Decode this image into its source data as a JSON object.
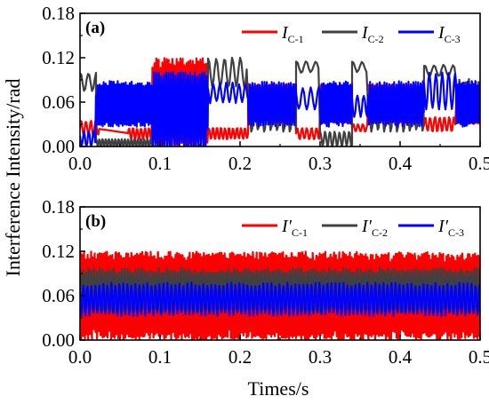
{
  "figure": {
    "ylabel": "Interference Intensity/rad",
    "xlabel": "Times/s"
  },
  "chart_data": [
    {
      "type": "line",
      "panel_label": "(a)",
      "xlim": [
        0.0,
        0.5
      ],
      "ylim": [
        0.0,
        0.18
      ],
      "xticks": [
        "0.0",
        "0.1",
        "0.2",
        "0.3",
        "0.4",
        "0.5"
      ],
      "yticks": [
        "0.00",
        "0.06",
        "0.12",
        "0.18"
      ],
      "legend_position": "top-right",
      "series": [
        {
          "name": "I",
          "subscript": "C-1",
          "color": "#ff0000",
          "segments": [
            [
              0.0,
              0.025,
              0.0,
              0.04,
              0.03,
              0.006
            ],
            [
              0.06,
              0.09,
              0.0,
              0.03,
              0.02,
              0.005
            ],
            [
              0.09,
              0.16,
              0.0,
              0.12,
              0.06,
              0.0025
            ],
            [
              0.16,
              0.21,
              0.0,
              0.03,
              0.02,
              0.005
            ],
            [
              0.21,
              0.27,
              0.0,
              0.11,
              0.06,
              0.0025
            ],
            [
              0.27,
              0.3,
              0.0,
              0.03,
              0.02,
              0.006
            ],
            [
              0.3,
              0.34,
              0.0,
              0.11,
              0.06,
              0.0025
            ],
            [
              0.34,
              0.36,
              0.02,
              0.03,
              0.025,
              0.006
            ],
            [
              0.36,
              0.43,
              0.0,
              0.11,
              0.06,
              0.0025
            ],
            [
              0.43,
              0.47,
              0.02,
              0.04,
              0.03,
              0.006
            ],
            [
              0.47,
              0.5,
              0.0,
              0.11,
              0.06,
              0.0025
            ]
          ]
        },
        {
          "name": "I",
          "subscript": "C-2",
          "color": "#404040",
          "segments": [
            [
              0.0,
              0.02,
              0.06,
              0.11,
              0.09,
              0.01
            ],
            [
              0.02,
              0.09,
              0.0,
              0.01,
              0.005,
              0.004
            ],
            [
              0.09,
              0.16,
              0.02,
              0.06,
              0.04,
              0.008
            ],
            [
              0.16,
              0.21,
              0.08,
              0.12,
              0.1,
              0.01
            ],
            [
              0.21,
              0.27,
              0.02,
              0.06,
              0.04,
              0.008
            ],
            [
              0.27,
              0.3,
              0.09,
              0.12,
              0.11,
              0.012
            ],
            [
              0.3,
              0.34,
              0.0,
              0.02,
              0.01,
              0.006
            ],
            [
              0.34,
              0.36,
              0.09,
              0.12,
              0.11,
              0.012
            ],
            [
              0.36,
              0.43,
              0.02,
              0.06,
              0.04,
              0.008
            ],
            [
              0.43,
              0.47,
              0.09,
              0.12,
              0.1,
              0.012
            ],
            [
              0.47,
              0.5,
              0.02,
              0.12,
              0.06,
              0.004
            ]
          ]
        },
        {
          "name": "I",
          "subscript": "C-3",
          "color": "#0000ff",
          "segments": [
            [
              0.0,
              0.02,
              0.0,
              0.02,
              0.01,
              0.006
            ],
            [
              0.02,
              0.09,
              0.0,
              0.11,
              0.06,
              0.0025
            ],
            [
              0.09,
              0.16,
              0.0,
              0.1,
              0.05,
              0.003
            ],
            [
              0.16,
              0.21,
              0.05,
              0.1,
              0.07,
              0.008
            ],
            [
              0.21,
              0.27,
              0.0,
              0.11,
              0.06,
              0.003
            ],
            [
              0.27,
              0.3,
              0.05,
              0.08,
              0.065,
              0.01
            ],
            [
              0.3,
              0.34,
              0.0,
              0.11,
              0.06,
              0.0025
            ],
            [
              0.34,
              0.36,
              0.04,
              0.07,
              0.055,
              0.008
            ],
            [
              0.36,
              0.43,
              0.0,
              0.11,
              0.06,
              0.003
            ],
            [
              0.43,
              0.47,
              0.05,
              0.1,
              0.075,
              0.008
            ],
            [
              0.47,
              0.5,
              0.0,
              0.11,
              0.06,
              0.0025
            ]
          ]
        }
      ]
    },
    {
      "type": "line",
      "panel_label": "(b)",
      "xlim": [
        0.0,
        0.5
      ],
      "ylim": [
        0.0,
        0.18
      ],
      "xticks": [
        "0.0",
        "0.1",
        "0.2",
        "0.3",
        "0.4",
        "0.5"
      ],
      "yticks": [
        "0.00",
        "0.06",
        "0.12",
        "0.18"
      ],
      "legend_position": "top-right",
      "series": [
        {
          "name": "I′",
          "subscript": "C-1",
          "color": "#ff0000",
          "segments": [
            [
              0.0,
              0.5,
              0.0,
              0.12,
              0.06,
              0.0022
            ]
          ]
        },
        {
          "name": "I′",
          "subscript": "C-2",
          "color": "#404040",
          "segments": [
            [
              0.0,
              0.5,
              0.01,
              0.12,
              0.07,
              0.0035
            ]
          ]
        },
        {
          "name": "I′",
          "subscript": "C-3",
          "color": "#0000ff",
          "segments": [
            [
              0.0,
              0.5,
              0.02,
              0.1,
              0.05,
              0.005
            ]
          ]
        }
      ]
    }
  ]
}
